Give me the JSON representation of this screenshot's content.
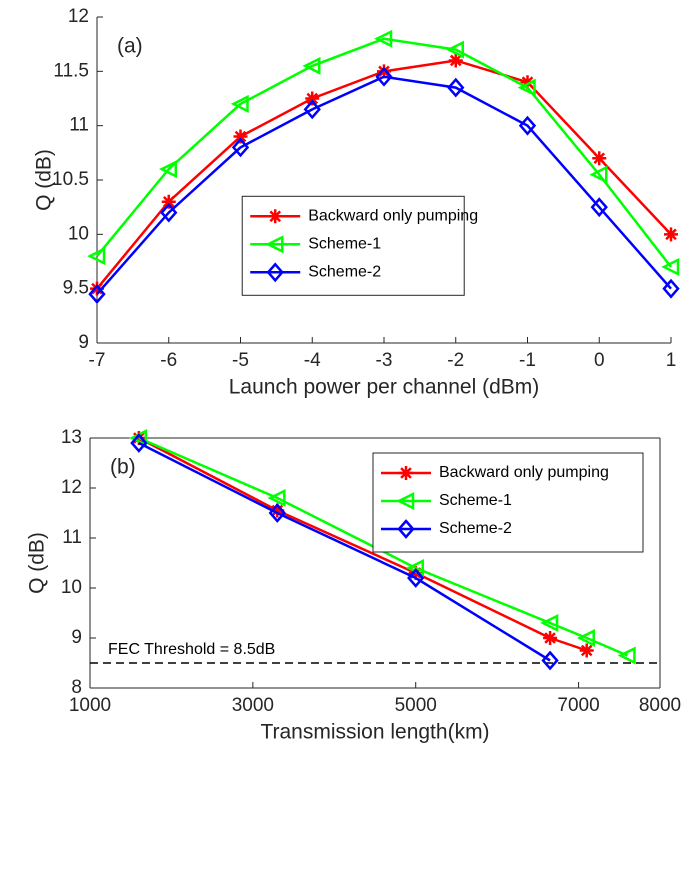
{
  "chart_data": [
    {
      "type": "line",
      "annotation": "(a)",
      "x_label": "Launch power per channel (dBm)",
      "y_label": "Q (dB)",
      "x": [
        -7,
        -6,
        -5,
        -4,
        -3,
        -2,
        -1,
        0,
        1
      ],
      "xlim": [
        -7,
        1
      ],
      "xticks": [
        -7,
        -6,
        -5,
        -4,
        -3,
        -2,
        -1,
        0,
        1
      ],
      "ylim": [
        9,
        12
      ],
      "yticks": [
        9,
        9.5,
        10,
        10.5,
        11,
        11.5,
        12
      ],
      "legend": "center-right",
      "box": false,
      "series": [
        {
          "name": "Backward only pumping",
          "color": "#ff0000",
          "marker": "asterisk",
          "values": [
            9.5,
            10.3,
            10.9,
            11.25,
            11.5,
            11.6,
            11.4,
            10.7,
            10.0
          ]
        },
        {
          "name": "Scheme-1",
          "color": "#00ff00",
          "marker": "triangle-left",
          "values": [
            9.8,
            10.6,
            11.2,
            11.55,
            11.8,
            11.7,
            11.35,
            10.55,
            9.7
          ]
        },
        {
          "name": "Scheme-2",
          "color": "#0000ff",
          "marker": "diamond",
          "values": [
            9.45,
            10.2,
            10.8,
            11.15,
            11.45,
            11.35,
            11.0,
            10.25,
            9.5
          ]
        }
      ]
    },
    {
      "type": "line",
      "annotation": "(b)",
      "x_label": "Transmission length(km)",
      "y_label": "Q (dB)",
      "xlim": [
        1000,
        8000
      ],
      "xticks": [
        1000,
        3000,
        5000,
        7000,
        8000
      ],
      "ylim": [
        8,
        13
      ],
      "yticks": [
        8,
        9,
        10,
        11,
        12,
        13
      ],
      "legend": "upper-right",
      "box": true,
      "threshold": {
        "value": 8.5,
        "label": "FEC Threshold = 8.5dB"
      },
      "series": [
        {
          "name": "Backward only pumping",
          "color": "#ff0000",
          "marker": "asterisk",
          "x": [
            1600,
            3300,
            5000,
            6650,
            7100
          ],
          "values": [
            13.0,
            11.55,
            10.3,
            9.0,
            8.75
          ]
        },
        {
          "name": "Scheme-1",
          "color": "#00ff00",
          "marker": "triangle-left",
          "x": [
            1600,
            3300,
            5000,
            6650,
            7100,
            7600
          ],
          "values": [
            13.0,
            11.8,
            10.4,
            9.3,
            9.0,
            8.65
          ]
        },
        {
          "name": "Scheme-2",
          "color": "#0000ff",
          "marker": "diamond",
          "x": [
            1600,
            3300,
            5000,
            6650
          ],
          "values": [
            12.9,
            11.5,
            10.2,
            8.55
          ]
        }
      ]
    }
  ]
}
